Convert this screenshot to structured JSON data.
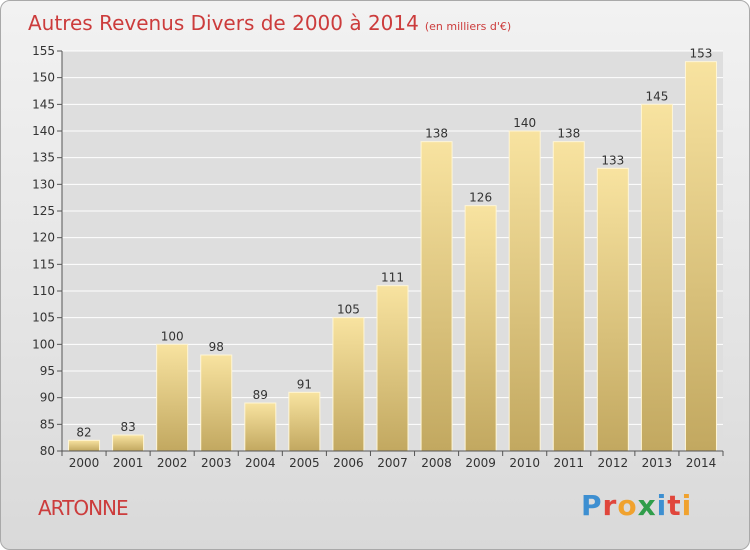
{
  "header": {
    "title": "Autres Revenus Divers de 2000 à 2014",
    "unit": "(en milliers d'€)"
  },
  "footer": {
    "town": "ARTONNE",
    "brand": [
      "P",
      "r",
      "o",
      "x",
      "i",
      "t",
      "i"
    ],
    "brand_colors": [
      "#3d8fd1",
      "#e0463c",
      "#f0a22e",
      "#2f9d4a",
      "#3d8fd1",
      "#e0463c",
      "#f0a22e"
    ]
  },
  "colors": {
    "title": "#cc3c3c",
    "bar_top": "#f8e3a0",
    "bar_bottom": "#c2a860",
    "grid": "#ffffff",
    "axis": "#555555"
  },
  "chart_data": {
    "type": "bar",
    "categories": [
      "2000",
      "2001",
      "2002",
      "2003",
      "2004",
      "2005",
      "2006",
      "2007",
      "2008",
      "2009",
      "2010",
      "2011",
      "2012",
      "2013",
      "2014"
    ],
    "values": [
      82,
      83,
      100,
      98,
      89,
      91,
      105,
      111,
      138,
      126,
      140,
      138,
      133,
      145,
      153
    ],
    "ylim": [
      80,
      155
    ],
    "yticks": [
      80,
      85,
      90,
      95,
      100,
      105,
      110,
      115,
      120,
      125,
      130,
      135,
      140,
      145,
      150,
      155
    ],
    "grid": true,
    "xlabel": "",
    "ylabel": ""
  }
}
